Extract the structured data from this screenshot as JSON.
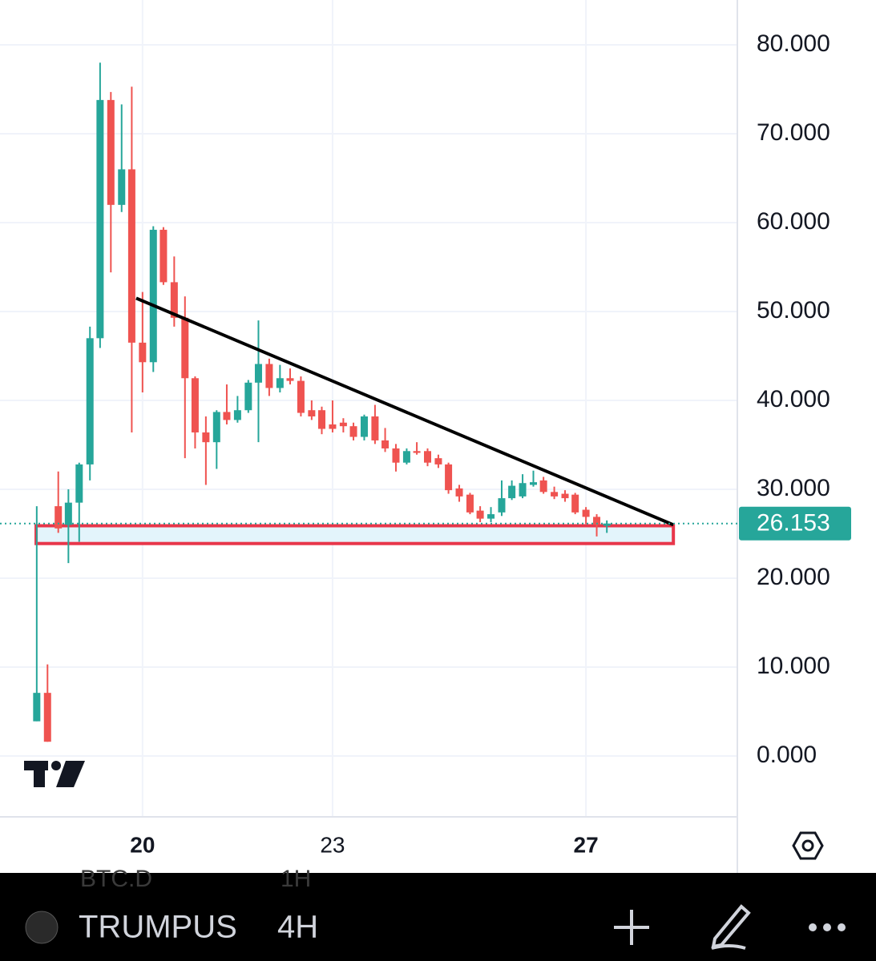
{
  "chart_data": {
    "type": "candlestick",
    "x": [
      18.33,
      18.5,
      18.67,
      18.83,
      19,
      19.17,
      19.33,
      19.5,
      19.67,
      19.83,
      20,
      20.17,
      20.33,
      20.5,
      20.67,
      20.83,
      21,
      21.17,
      21.33,
      21.5,
      21.67,
      21.83,
      22,
      22.17,
      22.33,
      22.5,
      22.67,
      22.83,
      23,
      23.17,
      23.33,
      23.5,
      23.67,
      23.83,
      24,
      24.17,
      24.33,
      24.5,
      24.67,
      24.83,
      25,
      25.17,
      25.33,
      25.5,
      25.67,
      25.83,
      26,
      26.17,
      26.33,
      26.5,
      26.67,
      26.83,
      27,
      27.17,
      27.33
    ],
    "open": [
      3.9,
      7.1,
      28.1,
      26.0,
      28.5,
      32.8,
      47.0,
      73.8,
      62.0,
      66.0,
      46.5,
      44.3,
      59.2,
      53.3,
      49.3,
      42.5,
      36.4,
      35.3,
      38.7,
      37.8,
      38.9,
      42.0,
      44.1,
      41.4,
      42.5,
      42.2,
      38.9,
      38.9,
      37.3,
      37.5,
      37.1,
      35.9,
      38.2,
      35.5,
      34.6,
      33.0,
      34.3,
      34.3,
      33.5,
      32.8,
      30.1,
      29.4,
      27.6,
      26.7,
      27.4,
      29.0,
      29.2,
      30.5,
      31.0,
      29.7,
      29.5,
      29.4,
      27.7,
      26.9,
      25.9
    ],
    "high": [
      28.1,
      10.3,
      32.0,
      30.0,
      33.0,
      48.3,
      78.0,
      74.7,
      73.3,
      75.3,
      52.2,
      59.6,
      59.5,
      56.2,
      51.7,
      42.7,
      38.2,
      38.9,
      41.8,
      40.5,
      42.3,
      49.0,
      44.7,
      44.0,
      43.6,
      42.7,
      40.0,
      39.3,
      40.0,
      38.0,
      37.5,
      38.4,
      39.5,
      36.9,
      35.1,
      34.6,
      35.3,
      34.6,
      33.9,
      33.0,
      30.5,
      29.6,
      28.1,
      28.0,
      31.0,
      31.0,
      31.7,
      32.1,
      31.4,
      30.3,
      29.9,
      29.6,
      28.0,
      27.2,
      26.5
    ],
    "low": [
      3.9,
      1.6,
      25.1,
      21.7,
      24.1,
      31.0,
      45.9,
      54.4,
      61.2,
      36.4,
      40.9,
      43.2,
      53.0,
      48.3,
      33.5,
      34.6,
      30.5,
      32.3,
      37.3,
      37.5,
      38.6,
      35.3,
      40.5,
      40.9,
      41.8,
      38.2,
      37.8,
      36.2,
      36.4,
      36.4,
      35.5,
      35.5,
      35.1,
      34.2,
      32.0,
      32.8,
      33.9,
      32.6,
      32.4,
      29.5,
      28.6,
      27.2,
      26.3,
      26.3,
      27.0,
      28.8,
      29.0,
      30.3,
      29.5,
      28.9,
      28.6,
      27.2,
      26.1,
      24.7,
      25.1
    ],
    "close": [
      7.1,
      1.6,
      25.6,
      28.5,
      32.8,
      47.0,
      73.8,
      62.0,
      66.0,
      46.5,
      44.3,
      59.2,
      53.3,
      49.3,
      42.5,
      36.4,
      35.3,
      38.7,
      37.8,
      38.9,
      42.0,
      44.1,
      41.4,
      42.5,
      42.2,
      38.6,
      38.2,
      36.8,
      36.8,
      37.1,
      35.9,
      38.2,
      35.5,
      34.6,
      33.0,
      34.3,
      34.1,
      33.0,
      32.8,
      29.9,
      29.2,
      27.4,
      26.7,
      27.2,
      29.0,
      30.4,
      30.7,
      30.8,
      29.7,
      29.2,
      29.0,
      27.4,
      26.9,
      26.0,
      26.153
    ],
    "colors": {
      "up": "#26a69a",
      "down": "#ef5350"
    },
    "xlim": [
      17.75,
      29.39
    ],
    "xticks": [
      20,
      23,
      27
    ],
    "ylim": [
      -6.85,
      85.05
    ],
    "yticks": [
      {
        "value": 0,
        "label": "0.000"
      },
      {
        "value": 10,
        "label": "10.000"
      },
      {
        "value": 20,
        "label": "20.000"
      },
      {
        "value": 30,
        "label": "30.000"
      },
      {
        "value": 40,
        "label": "40.000"
      },
      {
        "value": 50,
        "label": "50.000"
      },
      {
        "value": 60,
        "label": "60.000"
      },
      {
        "value": 70,
        "label": "70.000"
      },
      {
        "value": 80,
        "label": "80.000"
      }
    ],
    "grid": true,
    "trendline": {
      "x": [
        19.9,
        28.38
      ],
      "y": [
        51.5,
        26.0
      ],
      "color": "#000000"
    },
    "zone": {
      "x": [
        18.32,
        28.38
      ],
      "y": [
        23.9,
        25.9
      ],
      "color": "#e8364a"
    }
  },
  "toolbar": {
    "symbol": "TRUMPUS",
    "interval": "4H",
    "behind": [
      "BTC.D",
      "1H"
    ]
  }
}
